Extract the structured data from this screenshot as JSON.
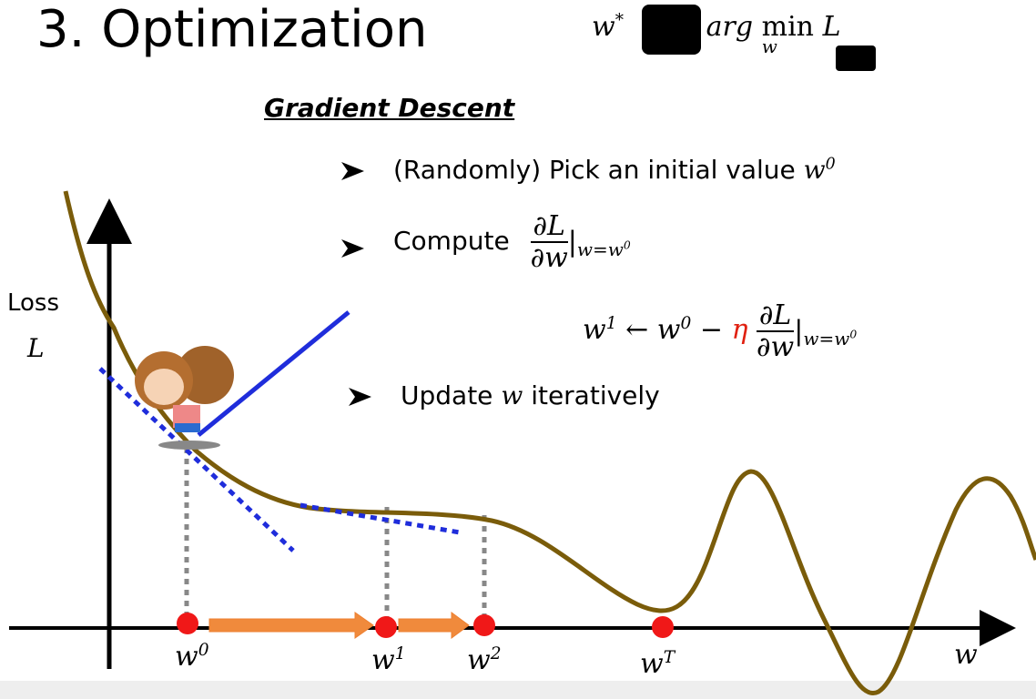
{
  "title": "3. Optimization",
  "objective": {
    "lhs": "w",
    "lhs_sup": "*",
    "rhs": "= arg",
    "op": "min",
    "op_sub": "w",
    "target": "L"
  },
  "section_title": "Gradient Descent",
  "bullets": [
    {
      "text": "(Randomly) Pick an initial value",
      "var": "w",
      "var_sup": "0"
    },
    {
      "text": "Compute",
      "numerator": "∂L",
      "denominator": "∂w",
      "bar": "|",
      "eval_sub": "w=w",
      "eval_sub_sup": "0"
    },
    {
      "text": "Update",
      "var": "w",
      "tail": "iteratively"
    }
  ],
  "update_rule": {
    "lhs": "w",
    "lhs_sup": "1",
    "arrow": "← ",
    "w0": "w",
    "w0_sup": "0",
    "minus": " − ",
    "eta": "η",
    "numerator": "∂L",
    "denominator": "∂w",
    "bar": "|",
    "eval_sub": "w=w",
    "eval_sub_sup": "0"
  },
  "axis": {
    "y_label": "Loss",
    "y_symbol": "L",
    "x_label": "w"
  },
  "points": [
    {
      "label": "w",
      "sup": "0"
    },
    {
      "label": "w",
      "sup": "1"
    },
    {
      "label": "w",
      "sup": "2"
    },
    {
      "label": "w",
      "sup": "T"
    }
  ]
}
